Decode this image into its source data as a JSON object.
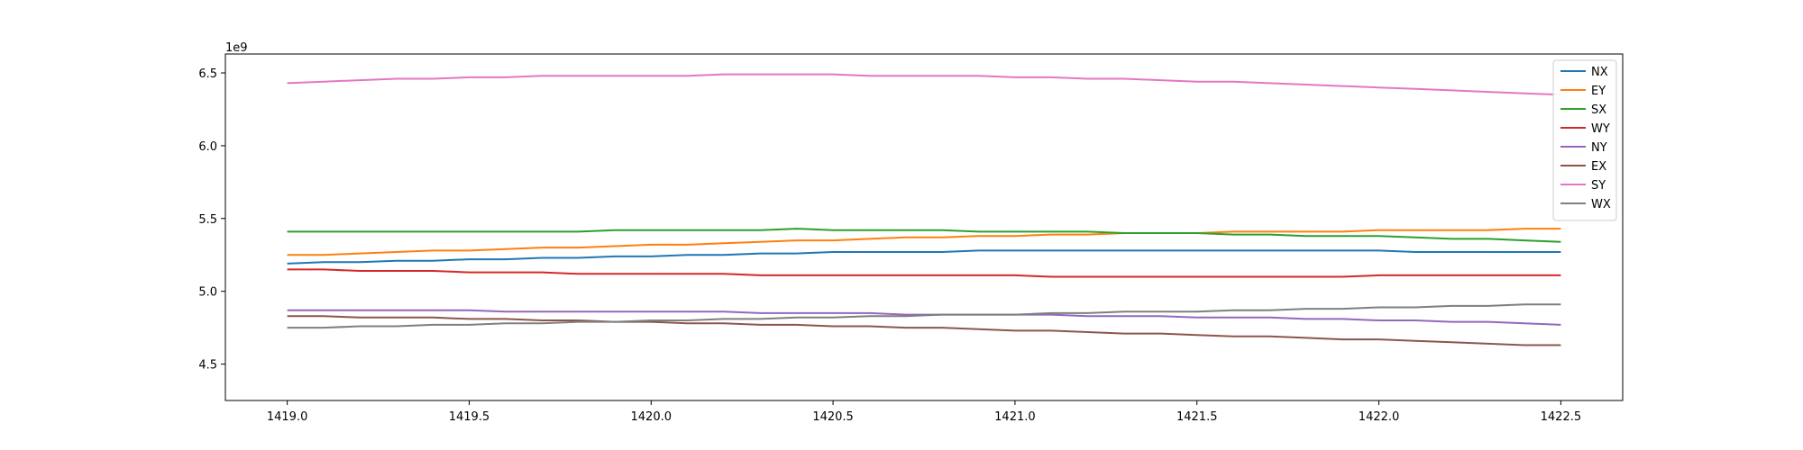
{
  "chart_data": {
    "type": "line",
    "title": "",
    "xlabel": "",
    "ylabel": "",
    "offset_text": "1e9",
    "xlim": [
      1418.83,
      1422.67
    ],
    "ylim": [
      4250000000.0,
      6630000000.0
    ],
    "xticks": [
      1419.0,
      1419.5,
      1420.0,
      1420.5,
      1421.0,
      1421.5,
      1422.0,
      1422.5
    ],
    "xtick_labels": [
      "1419.0",
      "1419.5",
      "1420.0",
      "1420.5",
      "1421.0",
      "1421.5",
      "1422.0",
      "1422.5"
    ],
    "yticks": [
      4500000000.0,
      5000000000.0,
      5500000000.0,
      6000000000.0,
      6500000000.0
    ],
    "ytick_labels": [
      "4.5",
      "5.0",
      "5.5",
      "6.0",
      "6.5"
    ],
    "grid": false,
    "legend_position": "top-right",
    "x": [
      1419.0,
      1419.1,
      1419.2,
      1419.3,
      1419.4,
      1419.5,
      1419.6,
      1419.7,
      1419.8,
      1419.9,
      1420.0,
      1420.1,
      1420.2,
      1420.3,
      1420.4,
      1420.5,
      1420.6,
      1420.7,
      1420.8,
      1420.9,
      1421.0,
      1421.1,
      1421.2,
      1421.3,
      1421.4,
      1421.5,
      1421.6,
      1421.7,
      1421.8,
      1421.9,
      1422.0,
      1422.1,
      1422.2,
      1422.3,
      1422.4,
      1422.5
    ],
    "series": [
      {
        "name": "NX",
        "color": "#1f77b4",
        "values": [
          5190000000.0,
          5200000000.0,
          5200000000.0,
          5210000000.0,
          5210000000.0,
          5220000000.0,
          5220000000.0,
          5230000000.0,
          5230000000.0,
          5240000000.0,
          5240000000.0,
          5250000000.0,
          5250000000.0,
          5260000000.0,
          5260000000.0,
          5270000000.0,
          5270000000.0,
          5270000000.0,
          5270000000.0,
          5280000000.0,
          5280000000.0,
          5280000000.0,
          5280000000.0,
          5280000000.0,
          5280000000.0,
          5280000000.0,
          5280000000.0,
          5280000000.0,
          5280000000.0,
          5280000000.0,
          5280000000.0,
          5270000000.0,
          5270000000.0,
          5270000000.0,
          5270000000.0,
          5270000000.0
        ]
      },
      {
        "name": "EY",
        "color": "#ff7f0e",
        "values": [
          5250000000.0,
          5250000000.0,
          5260000000.0,
          5270000000.0,
          5280000000.0,
          5280000000.0,
          5290000000.0,
          5300000000.0,
          5300000000.0,
          5310000000.0,
          5320000000.0,
          5320000000.0,
          5330000000.0,
          5340000000.0,
          5350000000.0,
          5350000000.0,
          5360000000.0,
          5370000000.0,
          5370000000.0,
          5380000000.0,
          5380000000.0,
          5390000000.0,
          5390000000.0,
          5400000000.0,
          5400000000.0,
          5400000000.0,
          5410000000.0,
          5410000000.0,
          5410000000.0,
          5410000000.0,
          5420000000.0,
          5420000000.0,
          5420000000.0,
          5420000000.0,
          5430000000.0,
          5430000000.0
        ]
      },
      {
        "name": "SX",
        "color": "#2ca02c",
        "values": [
          5410000000.0,
          5410000000.0,
          5410000000.0,
          5410000000.0,
          5410000000.0,
          5410000000.0,
          5410000000.0,
          5410000000.0,
          5410000000.0,
          5420000000.0,
          5420000000.0,
          5420000000.0,
          5420000000.0,
          5420000000.0,
          5430000000.0,
          5420000000.0,
          5420000000.0,
          5420000000.0,
          5420000000.0,
          5410000000.0,
          5410000000.0,
          5410000000.0,
          5410000000.0,
          5400000000.0,
          5400000000.0,
          5400000000.0,
          5390000000.0,
          5390000000.0,
          5380000000.0,
          5380000000.0,
          5380000000.0,
          5370000000.0,
          5360000000.0,
          5360000000.0,
          5350000000.0,
          5340000000.0
        ]
      },
      {
        "name": "WY",
        "color": "#d62728",
        "values": [
          5150000000.0,
          5150000000.0,
          5140000000.0,
          5140000000.0,
          5140000000.0,
          5130000000.0,
          5130000000.0,
          5130000000.0,
          5120000000.0,
          5120000000.0,
          5120000000.0,
          5120000000.0,
          5120000000.0,
          5110000000.0,
          5110000000.0,
          5110000000.0,
          5110000000.0,
          5110000000.0,
          5110000000.0,
          5110000000.0,
          5110000000.0,
          5100000000.0,
          5100000000.0,
          5100000000.0,
          5100000000.0,
          5100000000.0,
          5100000000.0,
          5100000000.0,
          5100000000.0,
          5100000000.0,
          5110000000.0,
          5110000000.0,
          5110000000.0,
          5110000000.0,
          5110000000.0,
          5110000000.0
        ]
      },
      {
        "name": "NY",
        "color": "#9467bd",
        "values": [
          4870000000.0,
          4870000000.0,
          4870000000.0,
          4870000000.0,
          4870000000.0,
          4870000000.0,
          4860000000.0,
          4860000000.0,
          4860000000.0,
          4860000000.0,
          4860000000.0,
          4860000000.0,
          4860000000.0,
          4850000000.0,
          4850000000.0,
          4850000000.0,
          4850000000.0,
          4840000000.0,
          4840000000.0,
          4840000000.0,
          4840000000.0,
          4840000000.0,
          4830000000.0,
          4830000000.0,
          4830000000.0,
          4820000000.0,
          4820000000.0,
          4820000000.0,
          4810000000.0,
          4810000000.0,
          4800000000.0,
          4800000000.0,
          4790000000.0,
          4790000000.0,
          4780000000.0,
          4770000000.0
        ]
      },
      {
        "name": "EX",
        "color": "#8c564b",
        "values": [
          4830000000.0,
          4830000000.0,
          4820000000.0,
          4820000000.0,
          4820000000.0,
          4810000000.0,
          4810000000.0,
          4800000000.0,
          4800000000.0,
          4790000000.0,
          4790000000.0,
          4780000000.0,
          4780000000.0,
          4770000000.0,
          4770000000.0,
          4760000000.0,
          4760000000.0,
          4750000000.0,
          4750000000.0,
          4740000000.0,
          4730000000.0,
          4730000000.0,
          4720000000.0,
          4710000000.0,
          4710000000.0,
          4700000000.0,
          4690000000.0,
          4690000000.0,
          4680000000.0,
          4670000000.0,
          4670000000.0,
          4660000000.0,
          4650000000.0,
          4640000000.0,
          4630000000.0,
          4630000000.0
        ]
      },
      {
        "name": "SY",
        "color": "#e377c2",
        "values": [
          6430000000.0,
          6440000000.0,
          6450000000.0,
          6460000000.0,
          6460000000.0,
          6470000000.0,
          6470000000.0,
          6480000000.0,
          6480000000.0,
          6480000000.0,
          6480000000.0,
          6480000000.0,
          6490000000.0,
          6490000000.0,
          6490000000.0,
          6490000000.0,
          6480000000.0,
          6480000000.0,
          6480000000.0,
          6480000000.0,
          6470000000.0,
          6470000000.0,
          6460000000.0,
          6460000000.0,
          6450000000.0,
          6440000000.0,
          6440000000.0,
          6430000000.0,
          6420000000.0,
          6410000000.0,
          6400000000.0,
          6390000000.0,
          6380000000.0,
          6370000000.0,
          6360000000.0,
          6350000000.0
        ]
      },
      {
        "name": "WX",
        "color": "#7f7f7f",
        "values": [
          4750000000.0,
          4750000000.0,
          4760000000.0,
          4760000000.0,
          4770000000.0,
          4770000000.0,
          4780000000.0,
          4780000000.0,
          4790000000.0,
          4790000000.0,
          4800000000.0,
          4800000000.0,
          4810000000.0,
          4810000000.0,
          4820000000.0,
          4820000000.0,
          4830000000.0,
          4830000000.0,
          4840000000.0,
          4840000000.0,
          4840000000.0,
          4850000000.0,
          4850000000.0,
          4860000000.0,
          4860000000.0,
          4860000000.0,
          4870000000.0,
          4870000000.0,
          4880000000.0,
          4880000000.0,
          4890000000.0,
          4890000000.0,
          4900000000.0,
          4900000000.0,
          4910000000.0,
          4910000000.0
        ]
      }
    ]
  }
}
